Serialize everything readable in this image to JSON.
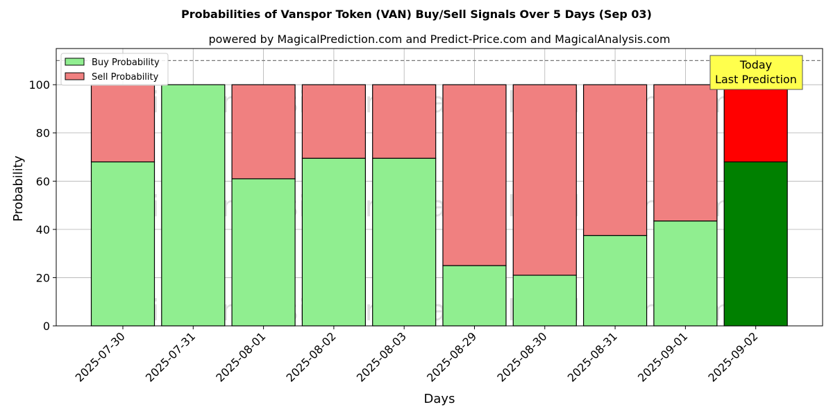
{
  "chart_data": {
    "type": "bar",
    "stacked": true,
    "title": "Probabilities of Vanspor Token (VAN) Buy/Sell Signals Over 5 Days (Sep 03)",
    "subtitle": "powered by MagicalPrediction.com and Predict-Price.com and MagicalAnalysis.com",
    "xlabel": "Days",
    "ylabel": "Probability",
    "ylim": [
      0,
      115
    ],
    "yticks": [
      0,
      20,
      40,
      60,
      80,
      100
    ],
    "reference_line": 110,
    "grid": true,
    "legend_position": "top-left",
    "categories": [
      "2025-07-30",
      "2025-07-31",
      "2025-08-01",
      "2025-08-02",
      "2025-08-03",
      "2025-08-29",
      "2025-08-30",
      "2025-08-31",
      "2025-09-01",
      "2025-09-02"
    ],
    "series": [
      {
        "name": "Buy Probability",
        "color": "#90ee90",
        "highlight_color": "#008000",
        "values": [
          68,
          100,
          61,
          69.5,
          69.5,
          25,
          21,
          37.5,
          43.5,
          68
        ]
      },
      {
        "name": "Sell Probability",
        "color": "#f08080",
        "highlight_color": "#ff0000",
        "values": [
          32,
          0,
          39,
          30.5,
          30.5,
          75,
          79,
          62.5,
          56.5,
          32
        ]
      }
    ],
    "highlight_index": 9,
    "annotation": {
      "lines": [
        "Today",
        "Last Prediction"
      ],
      "color": "#ffff4d"
    },
    "watermarks": [
      "MagicalAnalysis.com",
      "MagicalPrediction.com"
    ]
  }
}
